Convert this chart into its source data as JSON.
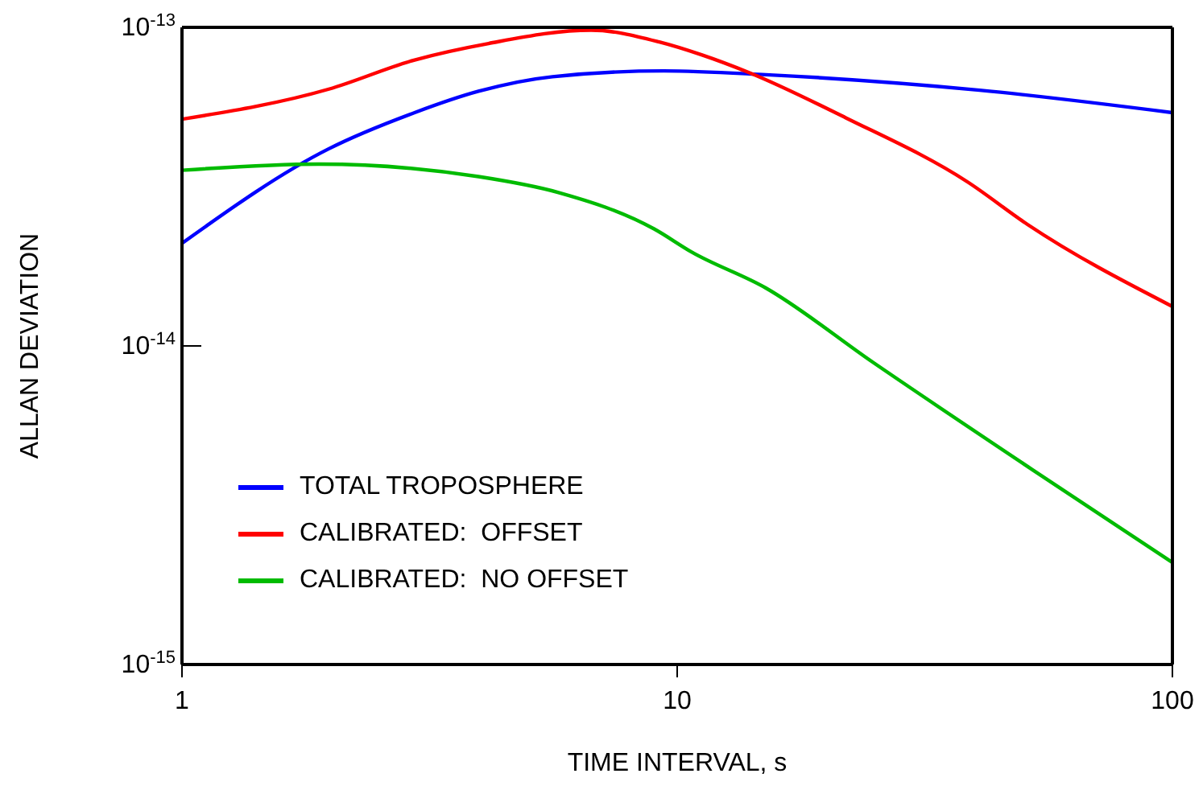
{
  "chart_data": {
    "type": "line",
    "xlabel": "TIME INTERVAL, s",
    "ylabel": "ALLAN DEVIATION",
    "log": "xy",
    "xlim": [
      1,
      100
    ],
    "xticks": [
      1,
      10,
      100
    ],
    "ylim": [
      1e-15,
      1e-13
    ],
    "yticks": [
      {
        "value": 1e-15,
        "label": "10$^{-15}$"
      },
      {
        "value": 1e-14,
        "label": "10$^{-14}$"
      },
      {
        "value": 1e-13,
        "label": "10$^{-13}$"
      }
    ],
    "grid": false,
    "legend": "bottom left",
    "marker": "none",
    "line_style": "solid",
    "series": [
      {
        "name": "TOTAL TROPOSPHERE",
        "color": "#0000ff",
        "x": [
          1,
          1.98,
          2.95,
          3.97,
          5.6,
          9.4,
          15.1,
          40.8,
          100
        ],
        "values": [
          2.1e-14,
          4.16e-14,
          5.4e-14,
          6.3e-14,
          7e-14,
          7.3e-14,
          7.1e-14,
          6.35e-14,
          5.4e-14
        ]
      },
      {
        "name": "CALIBRATED:  OFFSET",
        "color": "#ff0000",
        "x": [
          1,
          1.98,
          2.95,
          4.16,
          6.7,
          9.2,
          11.2,
          14,
          21.9,
          38.6,
          50.9,
          100
        ],
        "values": [
          5.15e-14,
          6.4e-14,
          7.9e-14,
          8.9e-14,
          9.8e-14,
          9e-14,
          8.2e-14,
          7.2e-14,
          5.2e-14,
          3.27e-14,
          2.41e-14,
          1.33e-14
        ]
      },
      {
        "name": "CALIBRATED:  NO OFFSET",
        "color": "#00bb00",
        "x": [
          1,
          1.89,
          3.97,
          5.76,
          8.98,
          10.7,
          15.1,
          24.8,
          52,
          100
        ],
        "values": [
          3.56e-14,
          3.72e-14,
          3.4e-14,
          3.03e-14,
          2.33e-14,
          1.97e-14,
          1.52e-14,
          8.9e-15,
          4.1e-15,
          2.09e-15
        ]
      }
    ]
  }
}
